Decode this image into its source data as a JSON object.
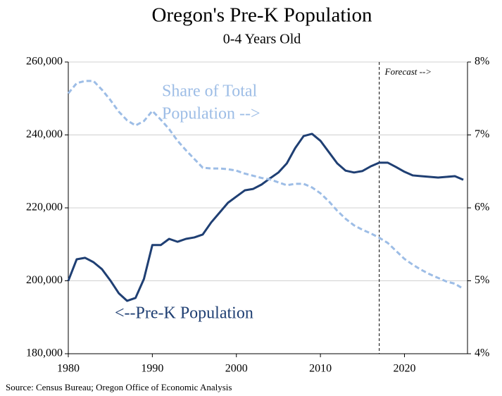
{
  "chart_data": {
    "type": "line",
    "title": "Oregon's Pre-K Population",
    "subtitle": "0-4 Years Old",
    "source": "Source: Census Bureau; Oregon Office of Economic Analysis",
    "x": [
      1980,
      1981,
      1982,
      1983,
      1984,
      1985,
      1986,
      1987,
      1988,
      1989,
      1990,
      1991,
      1992,
      1993,
      1994,
      1995,
      1996,
      1997,
      1998,
      1999,
      2000,
      2001,
      2002,
      2003,
      2004,
      2005,
      2006,
      2007,
      2008,
      2009,
      2010,
      2011,
      2012,
      2013,
      2014,
      2015,
      2016,
      2017,
      2018,
      2019,
      2020,
      2021,
      2022,
      2023,
      2024,
      2025,
      2026,
      2027
    ],
    "series": [
      {
        "label": "<--Pre-K Population",
        "color": "#1f3f73",
        "axis": "y",
        "values": [
          200000,
          205900,
          206300,
          205100,
          203200,
          200100,
          196600,
          194500,
          195300,
          200500,
          209800,
          209800,
          211500,
          210700,
          211500,
          211900,
          212700,
          216000,
          218700,
          221400,
          223100,
          224800,
          225200,
          226400,
          228100,
          229700,
          232200,
          236400,
          239700,
          240300,
          238400,
          235300,
          232200,
          230200,
          229700,
          230100,
          231400,
          232400,
          232400,
          231200,
          229900,
          228900,
          228700,
          228500,
          228300,
          228500,
          228700,
          227700
        ]
      },
      {
        "label_lines": [
          "Share of Total",
          "Population -->"
        ],
        "color": "#9dbde6",
        "axis": "y2",
        "dashed": true,
        "values": [
          7.57,
          7.71,
          7.74,
          7.74,
          7.62,
          7.48,
          7.32,
          7.2,
          7.13,
          7.19,
          7.33,
          7.21,
          7.08,
          6.92,
          6.79,
          6.67,
          6.55,
          6.54,
          6.54,
          6.53,
          6.51,
          6.47,
          6.44,
          6.41,
          6.39,
          6.35,
          6.31,
          6.33,
          6.33,
          6.28,
          6.2,
          6.09,
          5.96,
          5.85,
          5.76,
          5.7,
          5.65,
          5.59,
          5.52,
          5.41,
          5.3,
          5.22,
          5.15,
          5.09,
          5.04,
          4.99,
          4.96,
          4.89
        ]
      }
    ],
    "forecast_x": 2017,
    "forecast_label": "Forecast -->",
    "xlim": [
      1980,
      2027.5
    ],
    "xticks": [
      1980,
      1990,
      2000,
      2010,
      2020
    ],
    "ylim": [
      180000,
      260000
    ],
    "yticks": [
      {
        "value": 180000,
        "label": "180,000"
      },
      {
        "value": 200000,
        "label": "200,000"
      },
      {
        "value": 220000,
        "label": "220,000"
      },
      {
        "value": 240000,
        "label": "240,000"
      },
      {
        "value": 260000,
        "label": "260,000"
      }
    ],
    "y2lim": [
      4,
      8
    ],
    "y2ticks": [
      {
        "value": 4,
        "label": "4%"
      },
      {
        "value": 5,
        "label": "5%"
      },
      {
        "value": 6,
        "label": "6%"
      },
      {
        "value": 7,
        "label": "7%"
      },
      {
        "value": 8,
        "label": "8%"
      }
    ],
    "grid": true
  }
}
